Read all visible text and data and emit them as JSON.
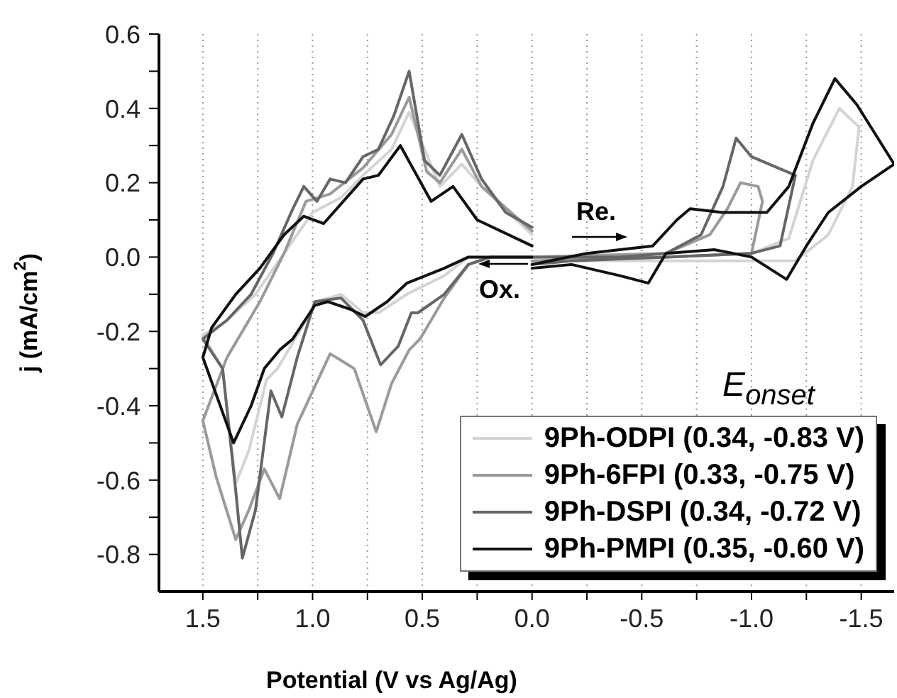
{
  "chart_data": {
    "type": "line",
    "xlabel": "Potential (V vs Ag/Ag)",
    "ylabel": "j (mA/cm$^{2}$)",
    "legend_title": "E$_{onset}$",
    "legend": "bottom right",
    "grid": "x",
    "line_style": "solid",
    "marker": "none",
    "xlim": [
      1.7,
      -1.65
    ],
    "ylim": [
      -0.9,
      0.6
    ],
    "xticks": [
      1.5,
      {
        "value": 1.25,
        "label": null
      },
      {
        "value": 1,
        "label": "1.0"
      },
      {
        "value": 0.75,
        "label": null
      },
      0.5,
      {
        "value": 0.25,
        "label": null
      },
      {
        "value": 0,
        "label": "0.0"
      },
      {
        "value": -0.25,
        "label": null
      },
      -0.5,
      {
        "value": -0.75,
        "label": null
      },
      {
        "value": -1,
        "label": "-1.0"
      },
      {
        "value": -1.25,
        "label": null
      },
      -1.5
    ],
    "yticks": [
      -0.8,
      {
        "value": -0.7,
        "label": null
      },
      -0.6,
      {
        "value": -0.5,
        "label": null
      },
      -0.4,
      {
        "value": -0.3,
        "label": null
      },
      -0.2,
      {
        "value": -0.1,
        "label": null
      },
      {
        "value": 0,
        "label": "0.0"
      },
      {
        "value": 0.1,
        "label": null
      },
      0.2,
      {
        "value": 0.3,
        "label": null
      },
      0.4,
      {
        "value": 0.5,
        "label": null
      },
      0.6
    ],
    "annotations": [
      "Ox.",
      "Re."
    ],
    "series": [
      {
        "name": "9Ph-ODPI (0.34, -0.83 V)",
        "color": "#d4d4d4",
        "x": [
          0,
          0.23,
          0.32,
          0.42,
          0.56,
          0.64,
          0.77,
          0.87,
          1.0,
          1.13,
          1.26,
          1.39,
          1.5,
          1.41,
          1.35,
          1.29,
          1.21,
          1.16,
          1.07,
          0.98,
          0.87,
          0.77,
          0.7,
          0.57,
          0.4,
          0.29,
          0,
          null,
          0,
          -0.61,
          -1.0,
          -1.17,
          -1.28,
          -1.4,
          -1.49,
          -1.46,
          -1.35,
          -1.2,
          -0.61,
          0
        ],
        "values": [
          0.06,
          0.19,
          0.25,
          0.19,
          0.39,
          0.29,
          0.22,
          0.16,
          0.12,
          0.01,
          -0.1,
          -0.17,
          -0.21,
          -0.3,
          -0.61,
          -0.52,
          -0.33,
          -0.3,
          -0.21,
          -0.12,
          -0.1,
          -0.15,
          -0.15,
          -0.1,
          -0.05,
          0,
          0,
          null,
          0,
          0,
          0.01,
          0.05,
          0.26,
          0.4,
          0.35,
          0.19,
          0.06,
          -0.01,
          -0.01,
          -0.01
        ]
      },
      {
        "name": "9Ph-6FPI (0.33, -0.75 V)",
        "color": "#9a9a9a",
        "x": [
          0,
          0.23,
          0.32,
          0.42,
          0.48,
          0.56,
          0.64,
          0.77,
          0.92,
          1.03,
          1.13,
          1.24,
          1.39,
          1.5,
          1.44,
          1.35,
          1.29,
          1.22,
          1.15,
          1.07,
          0.92,
          0.81,
          0.71,
          0.64,
          0.56,
          0.51,
          0.4,
          0.29,
          0.19,
          0,
          null,
          0,
          -0.61,
          -0.81,
          -0.89,
          -0.95,
          -1.03,
          -1.05,
          -1.0,
          -0.61,
          0
        ],
        "values": [
          0.07,
          0.19,
          0.29,
          0.2,
          0.23,
          0.43,
          0.33,
          0.24,
          0.17,
          0.15,
          0.01,
          -0.12,
          -0.27,
          -0.44,
          -0.59,
          -0.76,
          -0.68,
          -0.57,
          -0.65,
          -0.45,
          -0.26,
          -0.3,
          -0.47,
          -0.34,
          -0.25,
          -0.22,
          -0.11,
          -0.02,
          0,
          0,
          null,
          0,
          0.01,
          0.06,
          0.13,
          0.2,
          0.19,
          0.15,
          0.01,
          0,
          -0.01
        ]
      },
      {
        "name": "9Ph-DSPI (0.34, -0.72 V)",
        "color": "#666666",
        "x": [
          0,
          0.12,
          0.23,
          0.32,
          0.42,
          0.49,
          0.56,
          0.63,
          0.7,
          0.77,
          0.85,
          0.92,
          0.98,
          1.04,
          1.09,
          1.18,
          1.28,
          1.39,
          1.5,
          1.41,
          1.35,
          1.32,
          1.26,
          1.19,
          1.14,
          1.07,
          0.99,
          0.87,
          0.77,
          0.69,
          0.61,
          0.55,
          0.52,
          0.4,
          0.29,
          0.19,
          0,
          null,
          0,
          -0.4,
          -0.61,
          -0.77,
          -0.87,
          -0.93,
          -1.0,
          -1.2,
          -1.13,
          -1.0,
          -0.61,
          -0.18,
          0
        ],
        "values": [
          0.08,
          0.12,
          0.21,
          0.33,
          0.22,
          0.26,
          0.5,
          0.38,
          0.29,
          0.27,
          0.2,
          0.21,
          0.15,
          0.19,
          0.13,
          0.01,
          -0.1,
          -0.17,
          -0.22,
          -0.3,
          -0.63,
          -0.81,
          -0.68,
          -0.36,
          -0.43,
          -0.27,
          -0.12,
          -0.11,
          -0.17,
          -0.29,
          -0.24,
          -0.15,
          -0.15,
          -0.1,
          -0.02,
          0,
          0,
          null,
          0,
          0,
          0.01,
          0.06,
          0.19,
          0.32,
          0.27,
          0.22,
          0.03,
          0.01,
          0,
          -0.01,
          -0.02
        ]
      },
      {
        "name": "9Ph-PMPI (0.35, -0.60 V)",
        "color": "#111111",
        "x": [
          0,
          0.25,
          0.36,
          0.46,
          0.6,
          0.7,
          0.77,
          0.83,
          0.95,
          1.04,
          1.13,
          1.24,
          1.35,
          1.46,
          1.5,
          1.36,
          1.28,
          1.22,
          1.15,
          1.09,
          0.99,
          0.93,
          0.83,
          0.76,
          0.66,
          0.57,
          0.4,
          0.29,
          0,
          null,
          0,
          -0.25,
          -0.55,
          -0.66,
          -0.72,
          -0.87,
          -1.07,
          -1.17,
          -1.28,
          -1.38,
          -1.48,
          -1.65,
          -1.5,
          -1.35,
          -1.25,
          -1.16,
          -1.0,
          -0.83,
          -0.61,
          -0.53,
          -0.4,
          -0.18,
          0
        ],
        "values": [
          0.03,
          0.1,
          0.19,
          0.15,
          0.3,
          0.22,
          0.21,
          0.17,
          0.09,
          0.11,
          0.06,
          -0.03,
          -0.1,
          -0.19,
          -0.27,
          -0.5,
          -0.4,
          -0.3,
          -0.25,
          -0.22,
          -0.13,
          -0.12,
          -0.14,
          -0.16,
          -0.12,
          -0.07,
          -0.03,
          0,
          0,
          null,
          -0.02,
          0.01,
          0.03,
          0.1,
          0.13,
          0.12,
          0.12,
          0.19,
          0.36,
          0.48,
          0.41,
          0.25,
          0.19,
          0.12,
          0.03,
          -0.06,
          0,
          0.02,
          0.01,
          -0.07,
          -0.05,
          -0.02,
          -0.03
        ]
      }
    ]
  }
}
